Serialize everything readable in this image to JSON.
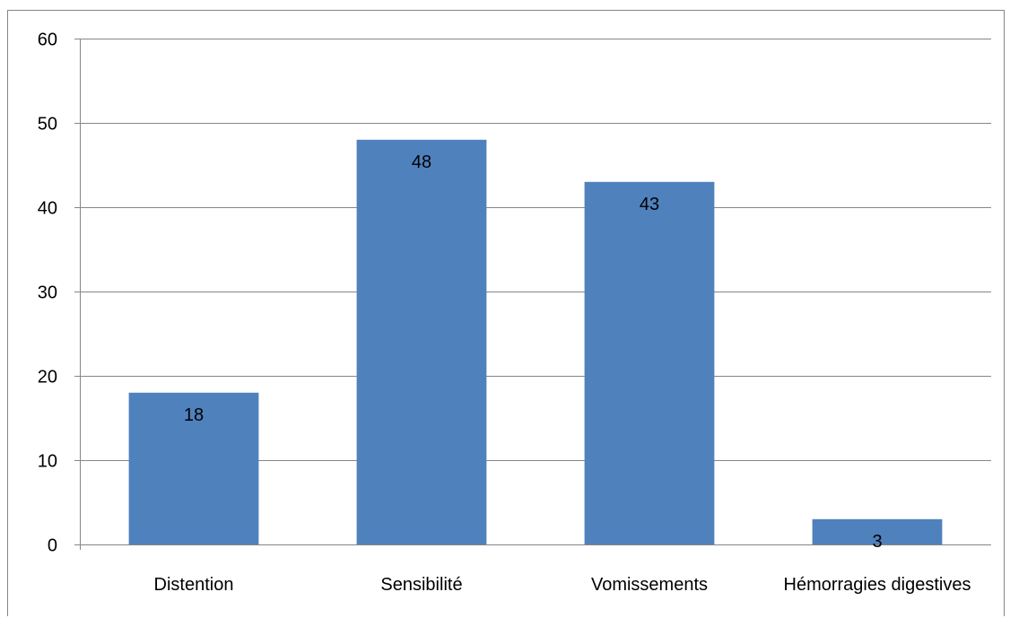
{
  "chart_data": {
    "type": "bar",
    "categories": [
      "Distention",
      "Sensibilité",
      "Vomissements",
      "Hémorragies digestives"
    ],
    "values": [
      18,
      48,
      43,
      3
    ],
    "data_labels": [
      "18",
      "48",
      "43",
      "3"
    ],
    "title": "",
    "xlabel": "",
    "ylabel": "",
    "ylim": [
      0,
      60
    ],
    "yticks": [
      0,
      10,
      20,
      30,
      40,
      50,
      60
    ],
    "ytick_labels": [
      "0",
      "10",
      "20",
      "30",
      "40",
      "50",
      "60"
    ],
    "grid": true,
    "legend": false,
    "colors": {
      "bar": "#4f81bd",
      "gridline": "#868686",
      "frame": "#868686"
    }
  }
}
